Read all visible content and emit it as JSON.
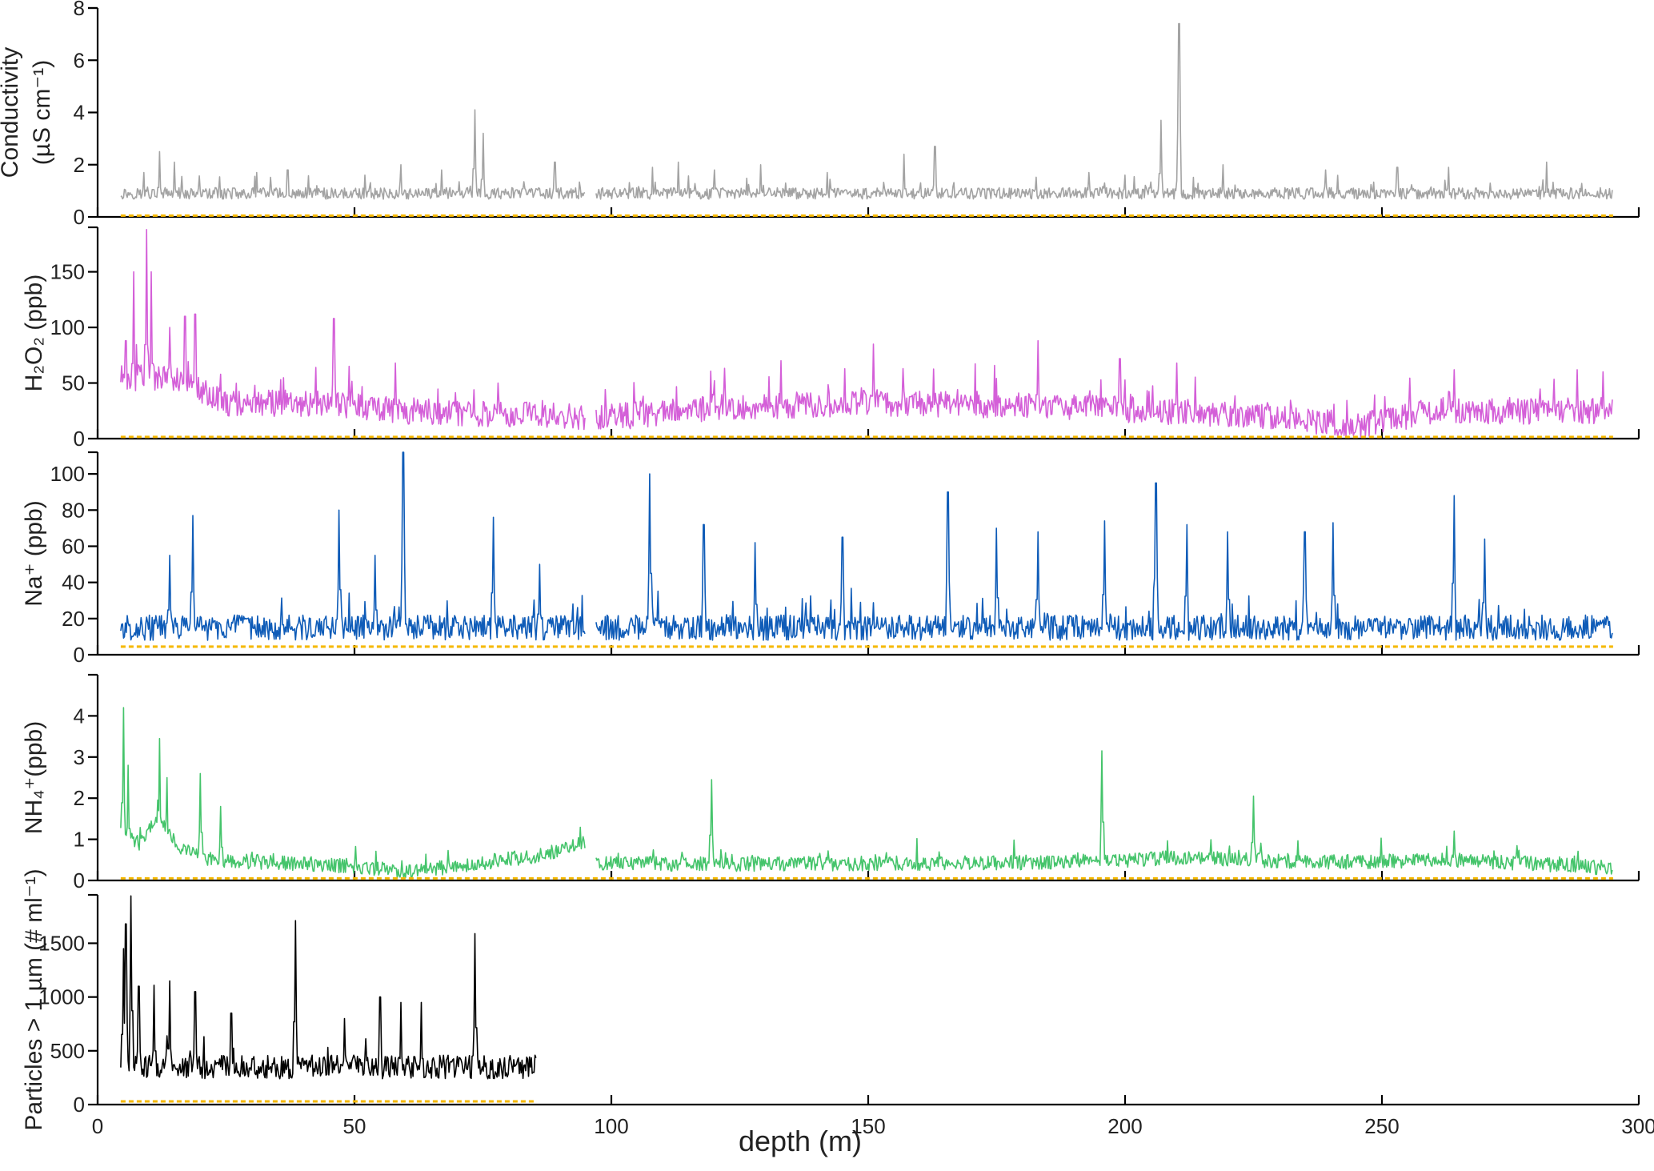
{
  "chart_data": {
    "type": "line",
    "xlabel": "depth (m)",
    "xlim": [
      0,
      300
    ],
    "xticks": [
      0,
      50,
      100,
      150,
      200,
      250,
      300
    ],
    "panels": [
      {
        "id": "conductivity",
        "ylabel_lines": [
          "Conductivity",
          "(µS cm⁻¹)"
        ],
        "ylim": [
          0,
          8
        ],
        "yticks": [
          0,
          2,
          4,
          6,
          8
        ],
        "color": "#a3a3a3",
        "base": 0.9,
        "noise": 0.22,
        "floor": 0.55,
        "x_range": [
          4.5,
          295
        ],
        "gap": [
          95,
          97
        ],
        "peaks": [
          [
            9,
            1.7
          ],
          [
            12,
            2.5
          ],
          [
            15,
            2.1
          ],
          [
            31,
            1.7
          ],
          [
            37,
            1.8
          ],
          [
            52,
            1.6
          ],
          [
            59,
            2.0
          ],
          [
            67,
            1.8
          ],
          [
            73.4,
            4.1
          ],
          [
            75,
            3.2
          ],
          [
            89,
            2.1
          ],
          [
            108,
            1.9
          ],
          [
            113,
            2.1
          ],
          [
            120,
            1.8
          ],
          [
            129,
            2.0
          ],
          [
            142,
            1.7
          ],
          [
            157,
            2.4
          ],
          [
            163,
            2.7
          ],
          [
            193,
            1.7
          ],
          [
            200,
            1.6
          ],
          [
            207,
            3.7
          ],
          [
            210.5,
            7.4
          ],
          [
            219,
            2.0
          ],
          [
            239,
            1.8
          ],
          [
            253,
            1.9
          ],
          [
            263,
            1.9
          ],
          [
            282,
            2.1
          ]
        ],
        "detection_limit": 0.05
      },
      {
        "id": "h2o2",
        "ylabel_lines": [
          "H₂O₂ (ppb)"
        ],
        "ylim": [
          0,
          190
        ],
        "yticks": [
          0,
          50,
          100,
          150
        ],
        "color": "#d45fd8",
        "segments": [
          [
            4.5,
            55
          ],
          [
            15,
            55
          ],
          [
            25,
            32
          ],
          [
            45,
            32
          ],
          [
            60,
            25
          ],
          [
            95,
            20
          ],
          [
            97,
            18
          ],
          [
            120,
            28
          ],
          [
            150,
            32
          ],
          [
            180,
            30
          ],
          [
            205,
            25
          ],
          [
            230,
            20
          ],
          [
            245,
            12
          ],
          [
            260,
            25
          ],
          [
            295,
            25
          ]
        ],
        "noise": 12,
        "floor": 1,
        "x_range": [
          4.5,
          295
        ],
        "gap": [
          95,
          97
        ],
        "peaks": [
          [
            5.5,
            88
          ],
          [
            7,
            150
          ],
          [
            9.5,
            188
          ],
          [
            10.5,
            150
          ],
          [
            14,
            100
          ],
          [
            17,
            110
          ],
          [
            19,
            112
          ],
          [
            46,
            108
          ],
          [
            49,
            65
          ],
          [
            58,
            68
          ],
          [
            78,
            50
          ],
          [
            120,
            52
          ],
          [
            133,
            70
          ],
          [
            151,
            85
          ],
          [
            183,
            88
          ],
          [
            199,
            72
          ],
          [
            210,
            68
          ],
          [
            264,
            62
          ],
          [
            288,
            62
          ],
          [
            293,
            60
          ]
        ],
        "detection_limit": 1.5
      },
      {
        "id": "na",
        "ylabel_lines": [
          "Na⁺ (ppb)"
        ],
        "ylim": [
          0,
          112
        ],
        "yticks": [
          0,
          20,
          40,
          60,
          80,
          100
        ],
        "color": "#0f5cb8",
        "base": 15,
        "noise": 7,
        "floor": 2,
        "x_range": [
          4.5,
          295
        ],
        "gap": [
          95,
          97
        ],
        "peaks": [
          [
            14,
            55
          ],
          [
            18.5,
            77
          ],
          [
            47,
            80
          ],
          [
            54,
            55
          ],
          [
            59.5,
            113
          ],
          [
            77,
            76
          ],
          [
            86,
            50
          ],
          [
            107.5,
            100
          ],
          [
            118,
            72
          ],
          [
            128,
            62
          ],
          [
            145,
            65
          ],
          [
            165.5,
            90
          ],
          [
            175,
            70
          ],
          [
            183,
            68
          ],
          [
            196,
            74
          ],
          [
            206,
            95
          ],
          [
            212,
            72
          ],
          [
            220,
            68
          ],
          [
            235,
            68
          ],
          [
            240.5,
            73
          ],
          [
            264,
            88
          ],
          [
            270,
            64
          ]
        ],
        "detection_limit": 4.5
      },
      {
        "id": "nh4",
        "ylabel_lines": [
          "NH₄⁺(ppb)"
        ],
        "ylim": [
          0,
          5
        ],
        "yticks": [
          0,
          1,
          2,
          3,
          4
        ],
        "color": "#45c46b",
        "segments": [
          [
            4.5,
            1.3
          ],
          [
            8,
            0.9
          ],
          [
            12,
            1.6
          ],
          [
            16,
            0.8
          ],
          [
            22,
            0.5
          ],
          [
            50,
            0.35
          ],
          [
            60,
            0.2
          ],
          [
            85,
            0.6
          ],
          [
            95,
            0.9
          ],
          [
            97,
            0.4
          ],
          [
            140,
            0.4
          ],
          [
            190,
            0.45
          ],
          [
            210,
            0.55
          ],
          [
            240,
            0.45
          ],
          [
            265,
            0.5
          ],
          [
            295,
            0.3
          ]
        ],
        "noise": 0.18,
        "floor": 0.05,
        "x_range": [
          4.5,
          295
        ],
        "gap": [
          95,
          97
        ],
        "peaks": [
          [
            5,
            4.2
          ],
          [
            6,
            2.8
          ],
          [
            12,
            3.45
          ],
          [
            13.5,
            2.5
          ],
          [
            20,
            2.6
          ],
          [
            24,
            1.8
          ],
          [
            119.5,
            2.45
          ],
          [
            195.5,
            3.15
          ],
          [
            225,
            2.05
          ],
          [
            264,
            1.2
          ]
        ],
        "detection_limit": 0.05
      },
      {
        "id": "particles",
        "ylabel_lines": [
          "Particles > 1 µm (# ml⁻¹)"
        ],
        "ylim": [
          0,
          1950
        ],
        "yticks": [
          0,
          500,
          1000,
          1500
        ],
        "color": "#000000",
        "base": 350,
        "noise": 110,
        "floor": 120,
        "x_range": [
          4.5,
          85.5
        ],
        "gap": null,
        "peaks": [
          [
            5,
            1450
          ],
          [
            5.5,
            1680
          ],
          [
            6.5,
            1940
          ],
          [
            8,
            1100
          ],
          [
            11,
            1110
          ],
          [
            14,
            1150
          ],
          [
            19,
            1050
          ],
          [
            26,
            850
          ],
          [
            38.5,
            1710
          ],
          [
            48,
            800
          ],
          [
            55,
            1000
          ],
          [
            59,
            950
          ],
          [
            63,
            950
          ],
          [
            73.5,
            1590
          ]
        ],
        "detection_limit": 30
      }
    ]
  }
}
